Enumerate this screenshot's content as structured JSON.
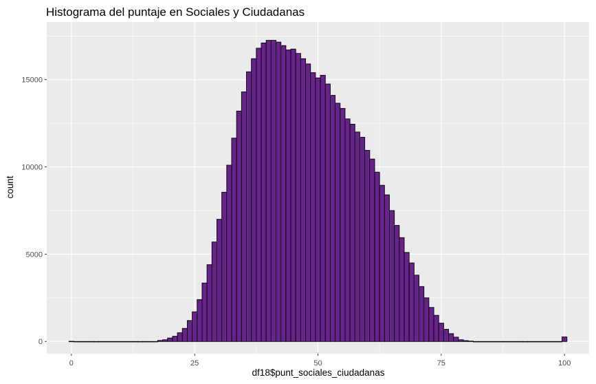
{
  "chart_data": {
    "type": "bar",
    "title": "Histograma del puntaje en Sociales y Ciudadanas",
    "xlabel": "df18$punt_sociales_ciudadanas",
    "ylabel": "count",
    "xlim": [
      -5,
      105
    ],
    "ylim": [
      -700,
      18300
    ],
    "x_ticks": [
      0,
      25,
      50,
      75,
      100
    ],
    "x_tick_labels": [
      "0",
      "25",
      "50",
      "75",
      "100"
    ],
    "y_ticks": [
      0,
      5000,
      10000,
      15000
    ],
    "y_tick_labels": [
      "0",
      "5000",
      "10000",
      "15000"
    ],
    "grid": true,
    "bin_width": 1,
    "bar_fill": "#68228B",
    "bar_outline": "#000000",
    "panel_background": "#EBEBEB",
    "gridline_color": "#FFFFFF",
    "x": [
      0,
      1,
      2,
      3,
      4,
      5,
      6,
      7,
      8,
      9,
      10,
      11,
      12,
      13,
      14,
      15,
      16,
      17,
      18,
      19,
      20,
      21,
      22,
      23,
      24,
      25,
      26,
      27,
      28,
      29,
      30,
      31,
      32,
      33,
      34,
      35,
      36,
      37,
      38,
      39,
      40,
      41,
      42,
      43,
      44,
      45,
      46,
      47,
      48,
      49,
      50,
      51,
      52,
      53,
      54,
      55,
      56,
      57,
      58,
      59,
      60,
      61,
      62,
      63,
      64,
      65,
      66,
      67,
      68,
      69,
      70,
      71,
      72,
      73,
      74,
      75,
      76,
      77,
      78,
      79,
      80,
      81,
      82,
      83,
      84,
      85,
      86,
      87,
      88,
      89,
      90,
      91,
      92,
      93,
      94,
      95,
      96,
      97,
      98,
      99,
      100
    ],
    "values": [
      10,
      0,
      0,
      0,
      0,
      0,
      0,
      0,
      0,
      0,
      0,
      0,
      0,
      0,
      0,
      0,
      0,
      0,
      60,
      100,
      200,
      300,
      500,
      750,
      1200,
      1700,
      2400,
      3350,
      4400,
      5700,
      7000,
      8550,
      10100,
      11650,
      13200,
      14300,
      15450,
      16200,
      16800,
      17100,
      17250,
      17250,
      17150,
      16950,
      16700,
      16750,
      16500,
      16200,
      15900,
      15400,
      15100,
      15250,
      14750,
      14100,
      13650,
      13350,
      12750,
      12450,
      12000,
      11700,
      10950,
      10450,
      9700,
      8950,
      8400,
      7500,
      6650,
      5950,
      5100,
      4500,
      3800,
      3150,
      2500,
      1950,
      1500,
      1050,
      700,
      450,
      250,
      100,
      50,
      20,
      0,
      0,
      0,
      0,
      0,
      0,
      0,
      0,
      0,
      0,
      0,
      0,
      0,
      0,
      0,
      0,
      0,
      0,
      260
    ]
  }
}
